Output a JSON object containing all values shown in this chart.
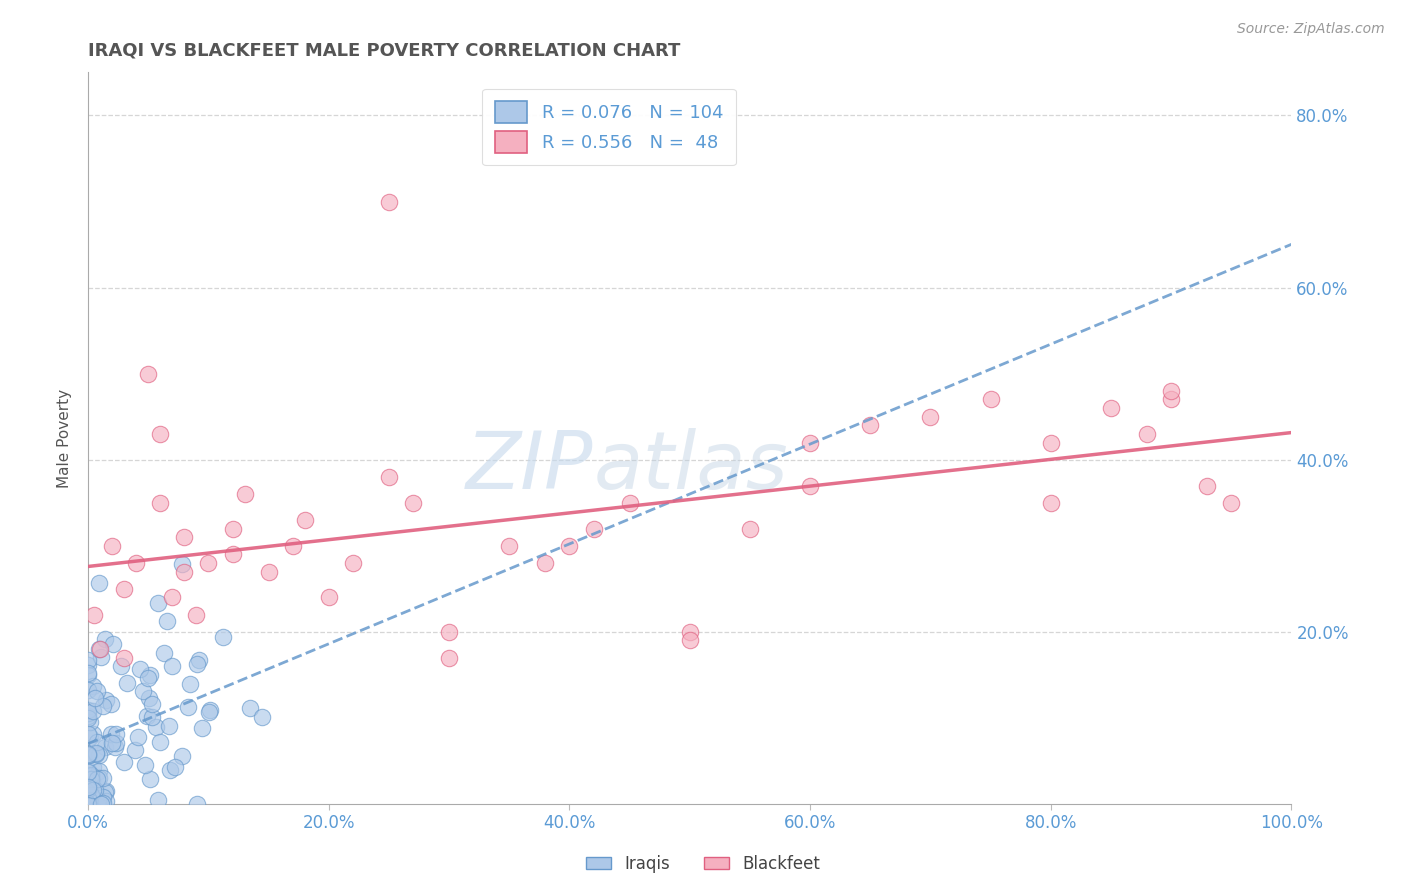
{
  "title": "IRAQI VS BLACKFEET MALE POVERTY CORRELATION CHART",
  "source": "Source: ZipAtlas.com",
  "ylabel": "Male Poverty",
  "watermark_zip": "ZIP",
  "watermark_atlas": "atlas",
  "iraqis_R": 0.076,
  "iraqis_N": 104,
  "blackfeet_R": 0.556,
  "blackfeet_N": 48,
  "iraqis_color": "#adc8e8",
  "blackfeet_color": "#f5b0c0",
  "iraqis_edge_color": "#6699cc",
  "blackfeet_edge_color": "#e06080",
  "iraqis_line_color": "#6699cc",
  "blackfeet_line_color": "#e06080",
  "background_color": "#ffffff",
  "grid_color": "#cccccc",
  "title_color": "#555555",
  "axis_label_color": "#5b9bd5",
  "xlim": [
    0.0,
    1.0
  ],
  "ylim": [
    0.0,
    0.85
  ],
  "x_ticks": [
    0.0,
    0.2,
    0.4,
    0.6,
    0.8,
    1.0
  ],
  "x_tick_labels": [
    "0.0%",
    "20.0%",
    "40.0%",
    "60.0%",
    "80.0%",
    "100.0%"
  ],
  "y_ticks": [
    0.2,
    0.4,
    0.6,
    0.8
  ],
  "y_tick_labels": [
    "20.0%",
    "40.0%",
    "60.0%",
    "80.0%"
  ]
}
